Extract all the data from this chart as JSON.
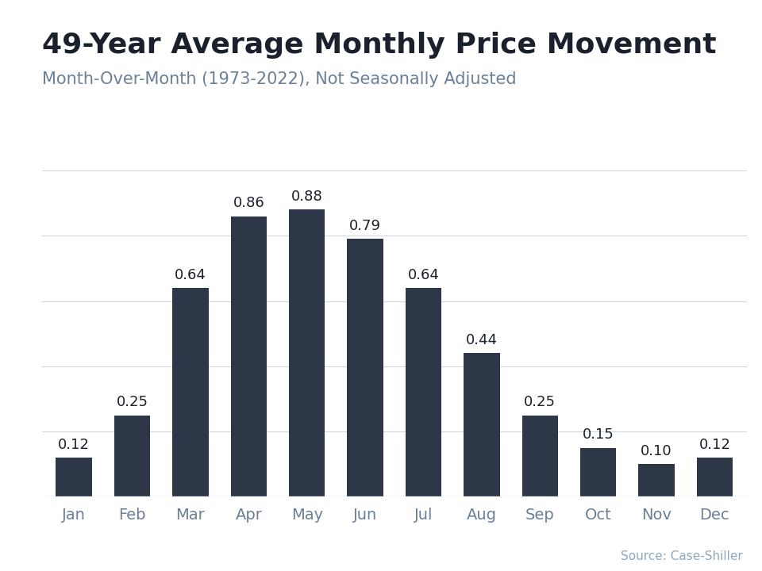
{
  "title": "49-Year Average Monthly Price Movement",
  "subtitle": "Month-Over-Month (1973-2022), Not Seasonally Adjusted",
  "source": "Source: Case-Shiller",
  "categories": [
    "Jan",
    "Feb",
    "Mar",
    "Apr",
    "May",
    "Jun",
    "Jul",
    "Aug",
    "Sep",
    "Oct",
    "Nov",
    "Dec"
  ],
  "values": [
    0.12,
    0.25,
    0.64,
    0.86,
    0.88,
    0.79,
    0.64,
    0.44,
    0.25,
    0.15,
    0.1,
    0.12
  ],
  "bar_color": "#2d3748",
  "background_color": "#ffffff",
  "top_bar_color": "#3ab0d8",
  "title_color": "#1a202c",
  "subtitle_color": "#6b8097",
  "tick_color": "#6b8097",
  "grid_color": "#d0d8e0",
  "source_color": "#8fa8bc",
  "ylim": [
    0,
    1.05
  ],
  "title_fontsize": 26,
  "subtitle_fontsize": 15,
  "label_fontsize": 13,
  "tick_fontsize": 14,
  "source_fontsize": 11
}
